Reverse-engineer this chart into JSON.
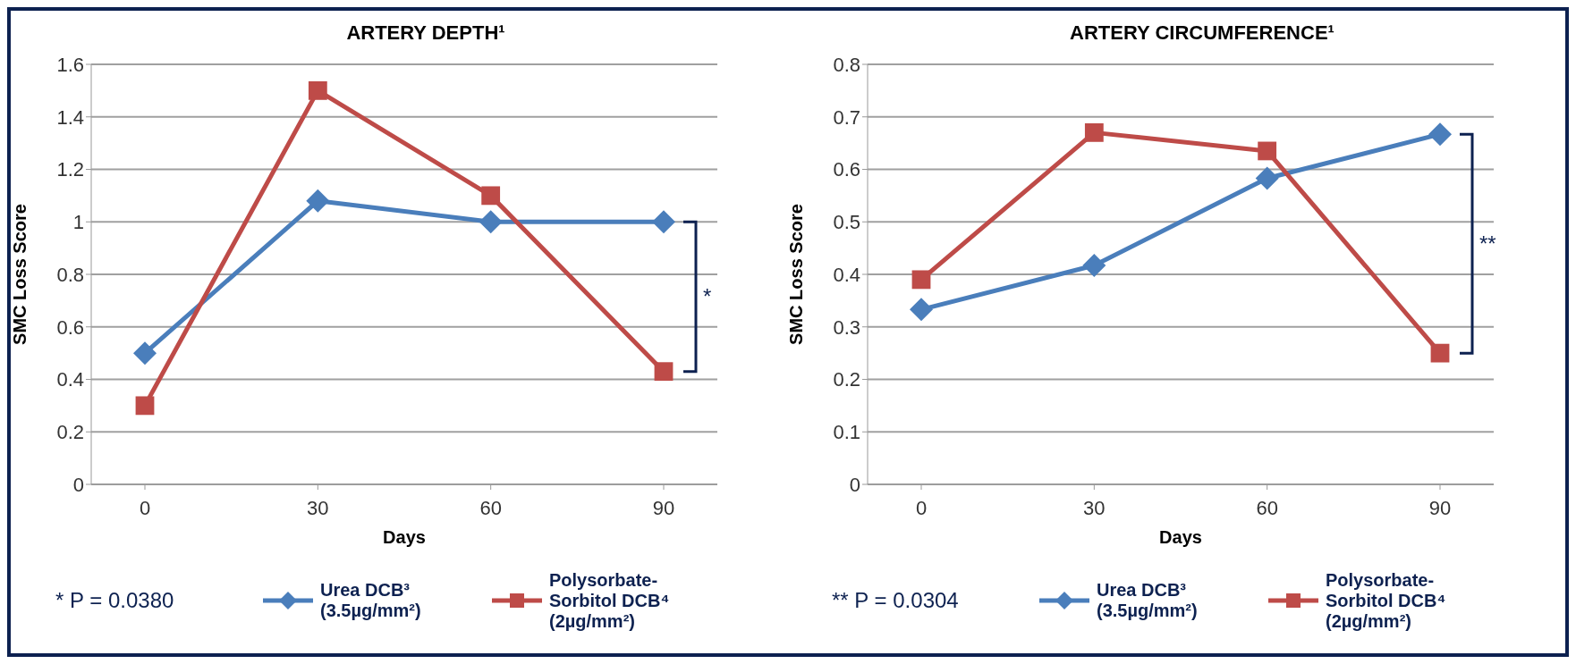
{
  "chart_data": [
    {
      "type": "line",
      "title": "ARTERY DEPTH¹",
      "xlabel": "Days",
      "ylabel": "SMC Loss Score",
      "categories": [
        "0",
        "30",
        "60",
        "90"
      ],
      "ylim": [
        0,
        1.6
      ],
      "yticks": [
        0,
        0.2,
        0.4,
        0.6,
        0.8,
        1,
        1.2,
        1.4,
        1.6
      ],
      "grid": "y",
      "legend": "bottom",
      "line_style": "solid",
      "series": [
        {
          "name": "Urea DCB³ (3.5µg/mm²)",
          "color": "#4a7ebb",
          "marker": "diamond",
          "values": [
            0.5,
            1.08,
            1.0,
            1.0
          ]
        },
        {
          "name": "Polysorbate-Sorbitol DCB⁴ (2µg/mm²)",
          "color": "#be4b48",
          "marker": "square",
          "values": [
            0.3,
            1.5,
            1.1,
            0.43
          ]
        }
      ],
      "annotations": [
        "*",
        "* P = 0.0380"
      ]
    },
    {
      "type": "line",
      "title": "ARTERY CIRCUMFERENCE¹",
      "xlabel": "Days",
      "ylabel": "SMC Loss Score",
      "categories": [
        "0",
        "30",
        "60",
        "90"
      ],
      "ylim": [
        0,
        0.8
      ],
      "yticks": [
        0,
        0.1,
        0.2,
        0.3,
        0.4,
        0.5,
        0.6,
        0.7,
        0.8
      ],
      "grid": "y",
      "legend": "bottom",
      "line_style": "solid",
      "series": [
        {
          "name": "Urea DCB³ (3.5µg/mm²)",
          "color": "#4a7ebb",
          "marker": "diamond",
          "values": [
            0.333,
            0.417,
            0.583,
            0.667
          ]
        },
        {
          "name": "Polysorbate-Sorbitol DCB⁴ (2µg/mm²)",
          "color": "#be4b48",
          "marker": "square",
          "values": [
            0.39,
            0.67,
            0.635,
            0.25
          ]
        }
      ],
      "annotations": [
        "**",
        "** P = 0.0304"
      ]
    }
  ]
}
